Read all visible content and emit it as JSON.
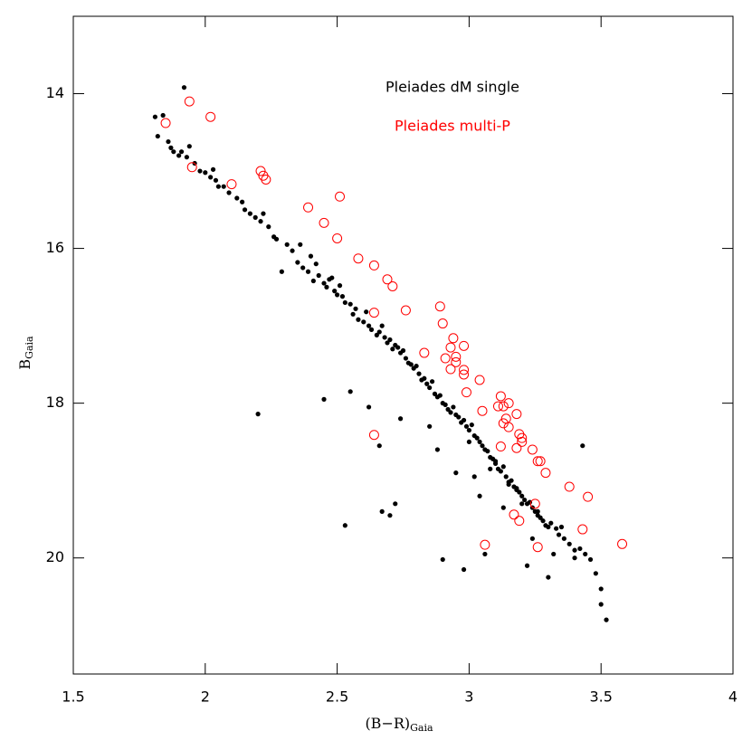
{
  "chart_data": {
    "type": "scatter",
    "xlabel": {
      "main": "(B−R)",
      "sub": "Gaia"
    },
    "ylabel": {
      "main": "B",
      "sub": "Gaia"
    },
    "xlim": [
      1.5,
      4
    ],
    "ylim": [
      21.5,
      13
    ],
    "xticks": [
      1.5,
      2,
      2.5,
      3,
      3.5,
      4
    ],
    "yticks": [
      14,
      16,
      18,
      20
    ],
    "series": [
      {
        "name": "Pleiades dM single",
        "color": "#000000",
        "marker": "dot",
        "x": [
          1.81,
          1.82,
          1.84,
          1.86,
          1.87,
          1.88,
          1.9,
          1.91,
          1.92,
          1.93,
          1.94,
          1.96,
          1.98,
          2.0,
          2.02,
          2.03,
          2.04,
          2.05,
          2.07,
          2.09,
          2.12,
          2.14,
          2.15,
          2.17,
          2.19,
          2.21,
          2.22,
          2.24,
          2.26,
          2.27,
          2.29,
          2.31,
          2.33,
          2.35,
          2.36,
          2.37,
          2.39,
          2.4,
          2.41,
          2.42,
          2.43,
          2.45,
          2.46,
          2.47,
          2.48,
          2.49,
          2.5,
          2.51,
          2.52,
          2.53,
          2.55,
          2.56,
          2.57,
          2.58,
          2.6,
          2.61,
          2.62,
          2.63,
          2.65,
          2.66,
          2.67,
          2.68,
          2.69,
          2.7,
          2.71,
          2.72,
          2.73,
          2.74,
          2.75,
          2.76,
          2.77,
          2.78,
          2.79,
          2.8,
          2.81,
          2.82,
          2.83,
          2.84,
          2.85,
          2.86,
          2.87,
          2.88,
          2.89,
          2.9,
          2.91,
          2.92,
          2.93,
          2.94,
          2.95,
          2.96,
          2.97,
          2.98,
          2.99,
          3.0,
          3.01,
          3.02,
          3.03,
          3.04,
          3.05,
          3.06,
          3.07,
          3.08,
          3.09,
          3.1,
          3.11,
          3.12,
          3.13,
          3.14,
          3.15,
          3.16,
          3.17,
          3.18,
          3.19,
          3.2,
          3.21,
          3.22,
          3.23,
          3.24,
          3.25,
          3.26,
          3.27,
          3.28,
          3.29,
          3.3,
          3.31,
          3.33,
          3.34,
          3.36,
          3.38,
          3.4,
          3.42,
          3.44,
          3.46,
          3.48,
          3.5,
          3.52,
          2.2,
          2.45,
          2.53,
          2.67,
          2.7,
          2.72,
          2.9,
          2.98,
          3.06,
          3.22,
          3.3,
          3.4,
          3.43,
          3.5,
          2.88,
          2.95,
          3.02,
          3.1,
          3.15,
          3.2,
          2.66,
          2.74,
          2.85,
          3.0,
          3.08,
          3.18,
          3.26,
          3.35,
          2.55,
          2.62,
          3.04,
          3.13,
          3.24,
          3.32
        ],
        "y": [
          14.3,
          14.55,
          14.28,
          14.62,
          14.7,
          14.75,
          14.8,
          14.75,
          13.92,
          14.82,
          14.68,
          14.9,
          15.0,
          15.02,
          15.08,
          14.98,
          15.12,
          15.2,
          15.2,
          15.28,
          15.35,
          15.4,
          15.5,
          15.55,
          15.6,
          15.65,
          15.55,
          15.72,
          15.85,
          15.88,
          16.3,
          15.95,
          16.03,
          16.18,
          15.95,
          16.25,
          16.3,
          16.1,
          16.42,
          16.2,
          16.35,
          16.45,
          16.5,
          16.4,
          16.38,
          16.55,
          16.6,
          16.48,
          16.62,
          16.7,
          16.72,
          16.85,
          16.78,
          16.92,
          16.95,
          16.82,
          17.0,
          17.05,
          17.12,
          17.08,
          17.0,
          17.15,
          17.22,
          17.18,
          17.3,
          17.25,
          17.28,
          17.35,
          17.32,
          17.42,
          17.48,
          17.5,
          17.55,
          17.52,
          17.62,
          17.7,
          17.68,
          17.75,
          17.8,
          17.72,
          17.88,
          17.92,
          17.9,
          18.0,
          18.02,
          18.08,
          18.12,
          18.05,
          18.15,
          18.18,
          18.25,
          18.22,
          18.3,
          18.35,
          18.28,
          18.42,
          18.45,
          18.5,
          18.55,
          18.6,
          18.62,
          18.7,
          18.72,
          18.78,
          18.85,
          18.88,
          18.82,
          18.95,
          19.02,
          19.0,
          19.08,
          19.12,
          19.15,
          19.2,
          19.25,
          19.3,
          19.28,
          19.35,
          19.4,
          19.45,
          19.48,
          19.52,
          19.58,
          19.6,
          19.55,
          19.62,
          19.7,
          19.75,
          19.82,
          19.9,
          19.88,
          19.95,
          20.02,
          20.2,
          20.6,
          20.8,
          18.14,
          17.95,
          19.58,
          19.4,
          19.45,
          19.3,
          20.02,
          20.15,
          19.95,
          20.1,
          20.25,
          20.0,
          18.55,
          20.4,
          18.6,
          18.9,
          18.95,
          18.75,
          19.05,
          19.3,
          18.55,
          18.2,
          18.3,
          18.5,
          18.85,
          19.1,
          19.4,
          19.6,
          17.85,
          18.05,
          19.2,
          19.35,
          19.75,
          19.95
        ]
      },
      {
        "name": "Pleiades multi-P",
        "color": "#ff0000",
        "marker": "circle",
        "x": [
          1.85,
          1.94,
          2.02,
          1.95,
          2.1,
          2.21,
          2.22,
          2.23,
          2.39,
          2.51,
          2.45,
          2.5,
          2.58,
          2.64,
          2.69,
          2.71,
          2.76,
          2.64,
          2.89,
          2.9,
          2.94,
          2.93,
          2.98,
          2.91,
          2.95,
          2.95,
          2.93,
          2.98,
          2.98,
          3.04,
          2.99,
          2.64,
          3.05,
          3.12,
          3.13,
          3.11,
          3.15,
          3.18,
          3.14,
          3.13,
          3.15,
          3.19,
          3.2,
          3.2,
          3.12,
          3.18,
          3.24,
          3.26,
          3.27,
          3.29,
          3.38,
          3.25,
          3.17,
          3.19,
          3.45,
          3.43,
          3.58,
          3.06,
          3.26,
          2.83
        ],
        "y": [
          14.38,
          14.1,
          14.3,
          14.95,
          15.17,
          15.0,
          15.06,
          15.11,
          15.47,
          15.33,
          15.67,
          15.87,
          16.13,
          16.22,
          16.4,
          16.49,
          16.8,
          16.83,
          16.75,
          16.97,
          17.16,
          17.28,
          17.26,
          17.42,
          17.4,
          17.47,
          17.56,
          17.57,
          17.63,
          17.7,
          17.86,
          18.41,
          18.1,
          17.91,
          18.04,
          18.04,
          18.0,
          18.14,
          18.2,
          18.26,
          18.31,
          18.4,
          18.45,
          18.5,
          18.56,
          18.58,
          18.6,
          18.75,
          18.75,
          18.9,
          19.08,
          19.3,
          19.44,
          19.52,
          19.21,
          19.63,
          19.82,
          19.83,
          19.86,
          17.35
        ]
      }
    ]
  }
}
